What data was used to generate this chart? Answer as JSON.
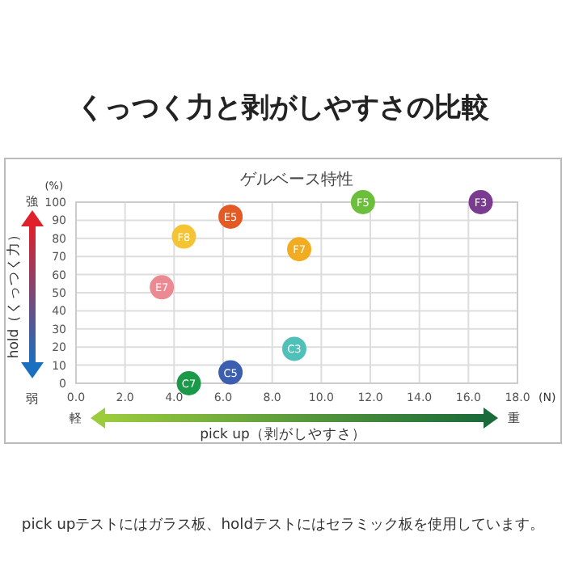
{
  "chart_data": {
    "type": "scatter",
    "title": "くっつく力と剥がしやすさの比較",
    "subtitle": "ゲルベース特性",
    "xlabel": "pick up（剥がしやすさ）",
    "ylabel": "hold（くっつく力）",
    "annotations": [
      "(%)",
      "(N)",
      "強",
      "弱",
      "軽",
      "重",
      "pick upテストにはガラス板、holdテストにはセラミック板を使用しています。"
    ],
    "xlim": [
      0,
      18
    ],
    "ylim": [
      0,
      100
    ],
    "xticks": [
      {
        "value": 0,
        "label": "0.0"
      },
      {
        "value": 2,
        "label": "2.0"
      },
      {
        "value": 4,
        "label": "4.0"
      },
      {
        "value": 6,
        "label": "6.0"
      },
      {
        "value": 8,
        "label": "8.0"
      },
      {
        "value": 10,
        "label": "10.0"
      },
      {
        "value": 12,
        "label": "12.0"
      },
      {
        "value": 14,
        "label": "14.0"
      },
      {
        "value": 16,
        "label": "16.0"
      },
      {
        "value": 18,
        "label": "18.0"
      }
    ],
    "yticks": [
      0,
      10,
      20,
      30,
      40,
      50,
      60,
      70,
      80,
      90,
      100
    ],
    "grid": true,
    "marker": "circle",
    "series": [
      {
        "name": "C7",
        "color": "#1a9a48",
        "x": [
          4.6
        ],
        "values": [
          0
        ]
      },
      {
        "name": "C5",
        "color": "#3b5fae",
        "x": [
          6.3
        ],
        "values": [
          6
        ]
      },
      {
        "name": "C3",
        "color": "#4fc1b8",
        "x": [
          8.9
        ],
        "values": [
          19
        ]
      },
      {
        "name": "E7",
        "color": "#ec8a94",
        "x": [
          3.5
        ],
        "values": [
          53
        ]
      },
      {
        "name": "F8",
        "color": "#f5c435",
        "x": [
          4.4
        ],
        "values": [
          81
        ]
      },
      {
        "name": "E5",
        "color": "#e35a24",
        "x": [
          6.3
        ],
        "values": [
          92
        ]
      },
      {
        "name": "F7",
        "color": "#f2ac22",
        "x": [
          9.1
        ],
        "values": [
          74
        ]
      },
      {
        "name": "F5",
        "color": "#6cbf3a",
        "x": [
          11.7
        ],
        "values": [
          100
        ]
      },
      {
        "name": "F3",
        "color": "#7a3c8e",
        "x": [
          16.5
        ],
        "values": [
          100
        ]
      }
    ]
  }
}
